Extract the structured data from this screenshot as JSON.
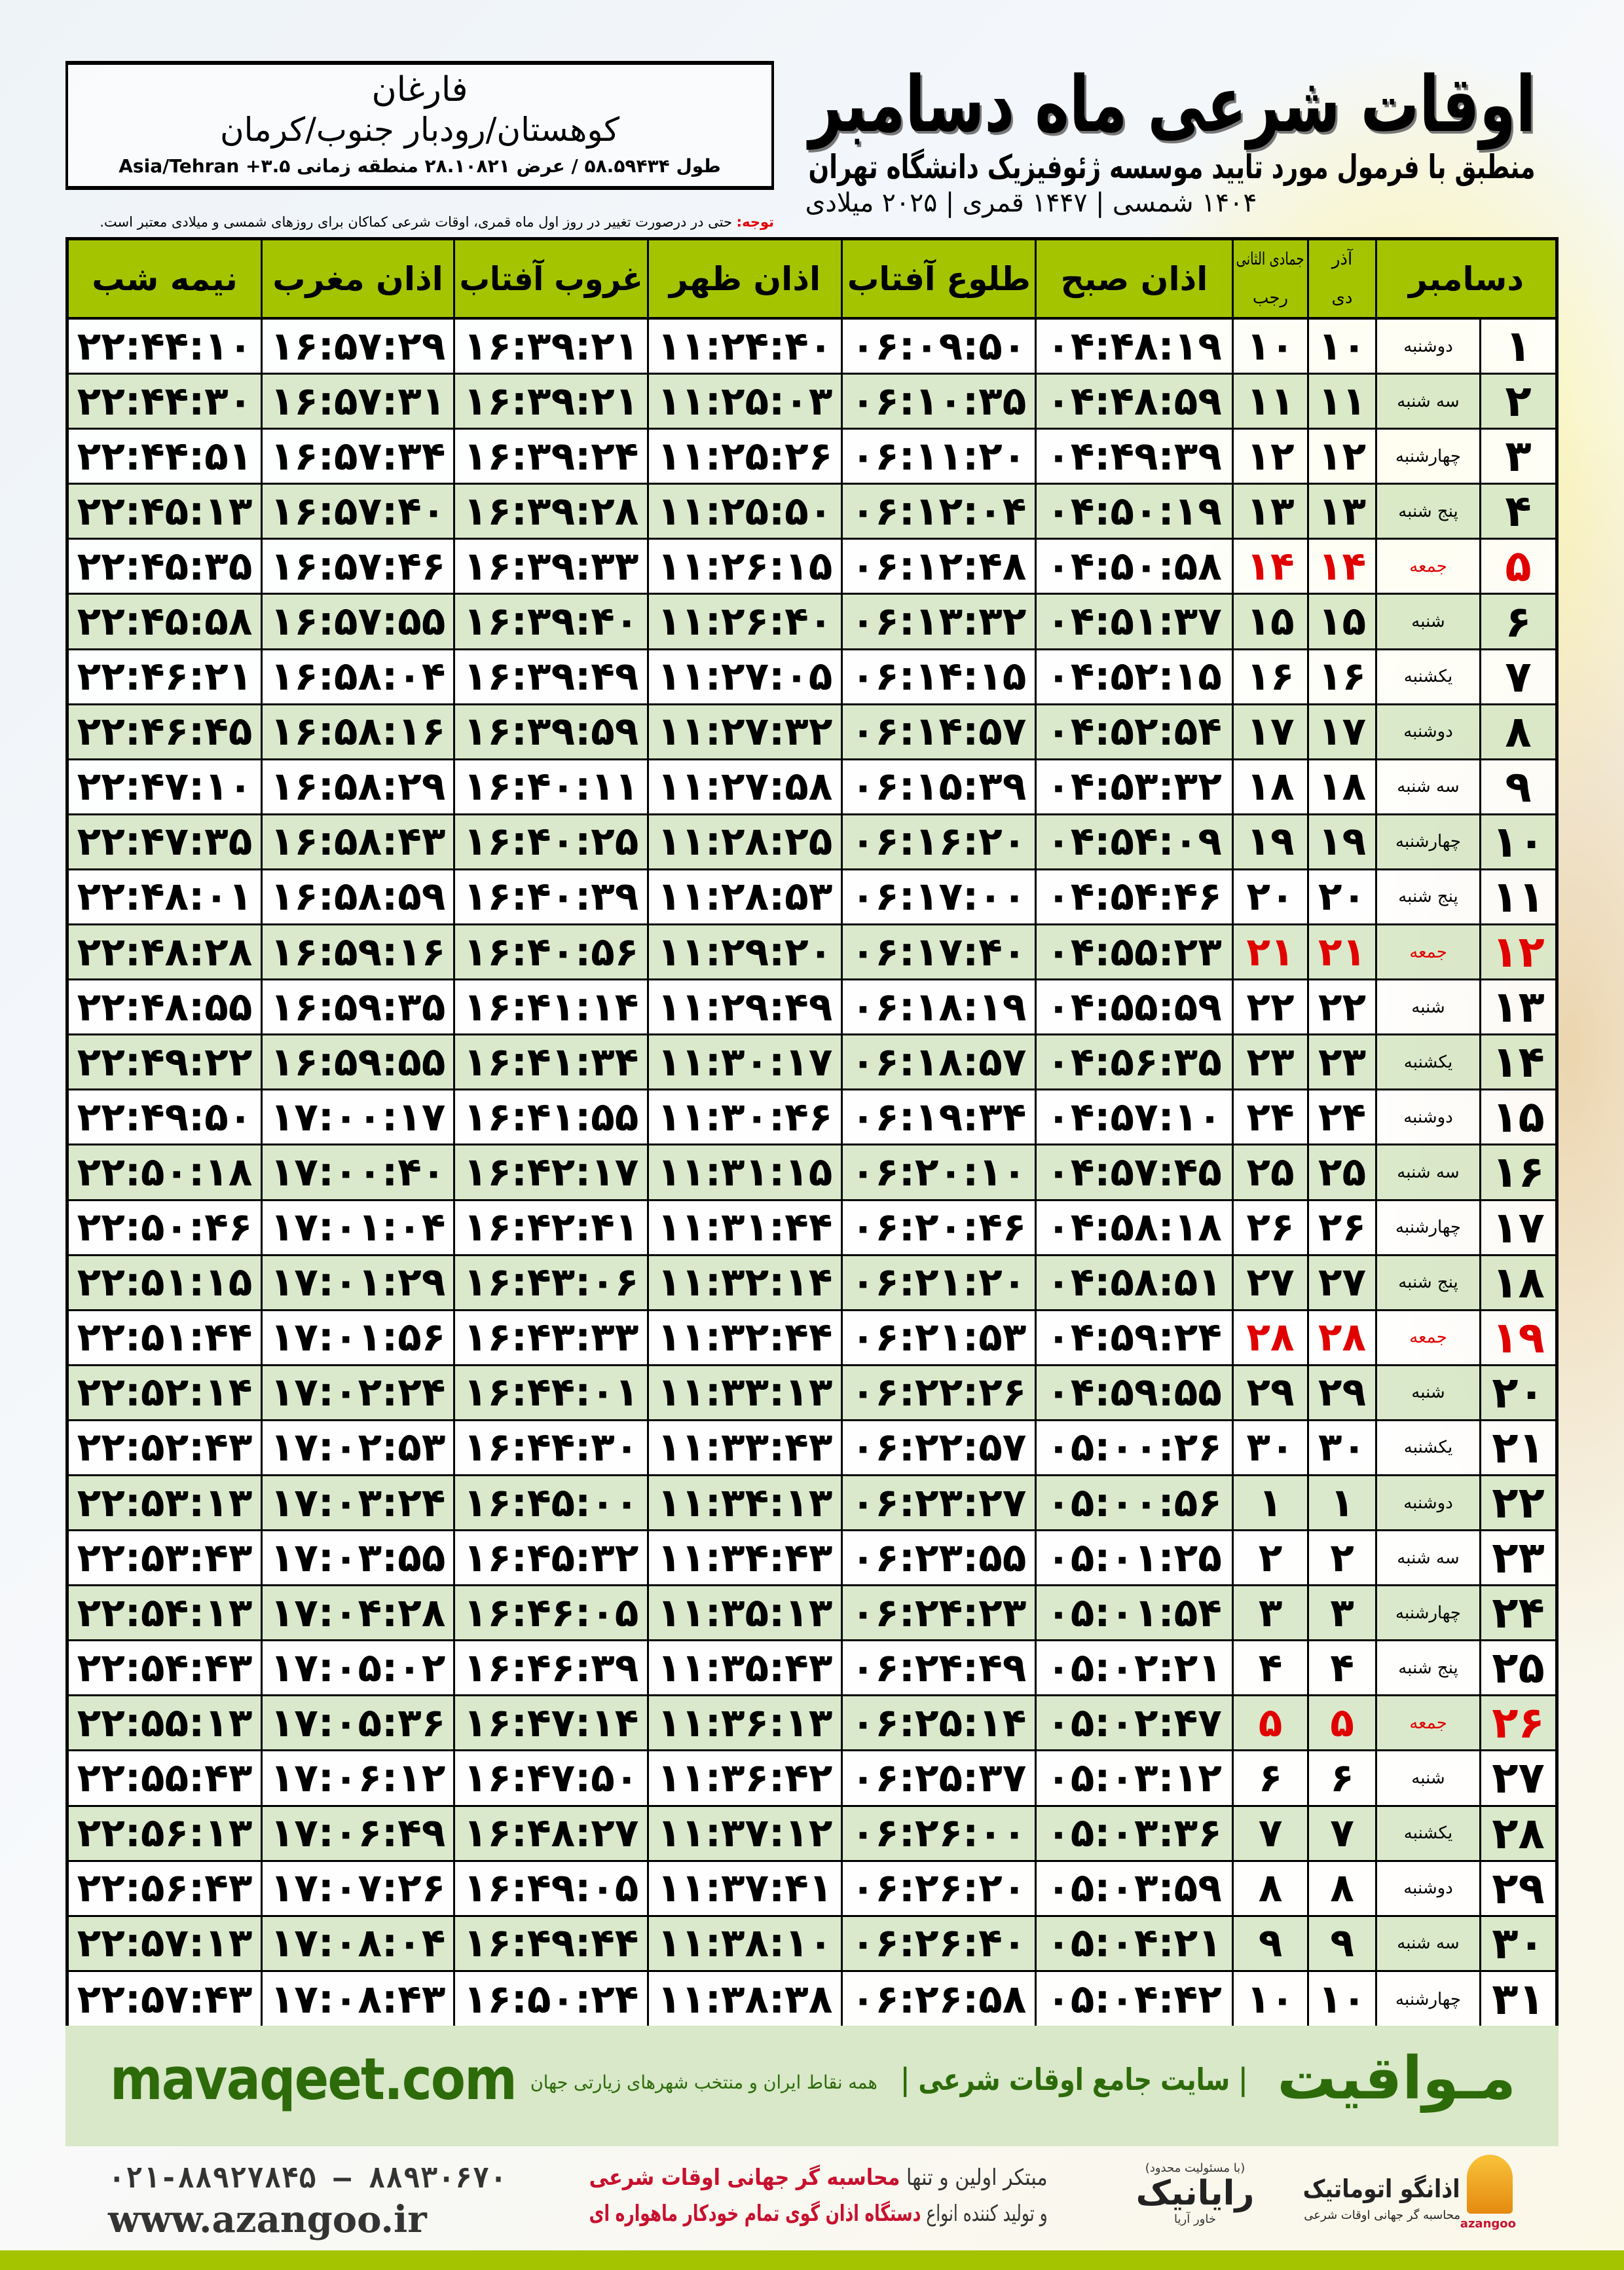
{
  "header": {
    "title": "اوقات شرعی ماه دسامبر",
    "subtitle": "منطبق با فرمول مورد تایید موسسه ژئوفیزیک دانشگاه تهران",
    "dateline": "۱۴۰۴ شمسی | ۱۴۴۷ قمری | ۲۰۲۵ میلادی"
  },
  "location": {
    "city": "فارغان",
    "region": "کوهستان/رودبار جنوب/کرمان",
    "coords": "طول ۵۸.۵۹۴۳۴ / عرض ۲۸.۱۰۸۲۱ منطقه زمانی ۳.۵+ Asia/Tehran"
  },
  "note": {
    "label": "توجه:",
    "text": " حتی در درصورت تغییر در روز اول ماه قمری، اوقات شرعی کماکان برای روزهای شمسی و میلادی معتبر است."
  },
  "table": {
    "headers": {
      "month": "دسامبر",
      "shamsi_top": "آذر",
      "shamsi_bottom": "دی",
      "qamari_top": "جمادی الثانی",
      "qamari_bottom": "رجب",
      "fajr": "اذان صبح",
      "sunrise": "طلوع آفتاب",
      "dhuhr": "اذان ظهر",
      "sunset": "غروب آفتاب",
      "maghrib": "اذان مغرب",
      "midnight": "نیمه شب"
    },
    "rows": [
      {
        "day": "۱",
        "weekday": "دوشنبه",
        "dey": "۱۰",
        "rajab": "۱۰",
        "fajr": "۰۴:۴۸:۱۹",
        "sunrise": "۰۶:۰۹:۵۰",
        "dhuhr": "۱۱:۲۴:۴۰",
        "sunset": "۱۶:۳۹:۲۱",
        "maghrib": "۱۶:۵۷:۲۹",
        "midnight": "۲۲:۴۴:۱۰"
      },
      {
        "day": "۲",
        "weekday": "سه شنبه",
        "dey": "۱۱",
        "rajab": "۱۱",
        "fajr": "۰۴:۴۸:۵۹",
        "sunrise": "۰۶:۱۰:۳۵",
        "dhuhr": "۱۱:۲۵:۰۳",
        "sunset": "۱۶:۳۹:۲۱",
        "maghrib": "۱۶:۵۷:۳۱",
        "midnight": "۲۲:۴۴:۳۰"
      },
      {
        "day": "۳",
        "weekday": "چهارشنبه",
        "dey": "۱۲",
        "rajab": "۱۲",
        "fajr": "۰۴:۴۹:۳۹",
        "sunrise": "۰۶:۱۱:۲۰",
        "dhuhr": "۱۱:۲۵:۲۶",
        "sunset": "۱۶:۳۹:۲۴",
        "maghrib": "۱۶:۵۷:۳۴",
        "midnight": "۲۲:۴۴:۵۱"
      },
      {
        "day": "۴",
        "weekday": "پنج شنبه",
        "dey": "۱۳",
        "rajab": "۱۳",
        "fajr": "۰۴:۵۰:۱۹",
        "sunrise": "۰۶:۱۲:۰۴",
        "dhuhr": "۱۱:۲۵:۵۰",
        "sunset": "۱۶:۳۹:۲۸",
        "maghrib": "۱۶:۵۷:۴۰",
        "midnight": "۲۲:۴۵:۱۳"
      },
      {
        "day": "۵",
        "weekday": "جمعه",
        "dey": "۱۴",
        "rajab": "۱۴",
        "fajr": "۰۴:۵۰:۵۸",
        "sunrise": "۰۶:۱۲:۴۸",
        "dhuhr": "۱۱:۲۶:۱۵",
        "sunset": "۱۶:۳۹:۳۳",
        "maghrib": "۱۶:۵۷:۴۶",
        "midnight": "۲۲:۴۵:۳۵",
        "friday": true
      },
      {
        "day": "۶",
        "weekday": "شنبه",
        "dey": "۱۵",
        "rajab": "۱۵",
        "fajr": "۰۴:۵۱:۳۷",
        "sunrise": "۰۶:۱۳:۳۲",
        "dhuhr": "۱۱:۲۶:۴۰",
        "sunset": "۱۶:۳۹:۴۰",
        "maghrib": "۱۶:۵۷:۵۵",
        "midnight": "۲۲:۴۵:۵۸"
      },
      {
        "day": "۷",
        "weekday": "یکشنبه",
        "dey": "۱۶",
        "rajab": "۱۶",
        "fajr": "۰۴:۵۲:۱۵",
        "sunrise": "۰۶:۱۴:۱۵",
        "dhuhr": "۱۱:۲۷:۰۵",
        "sunset": "۱۶:۳۹:۴۹",
        "maghrib": "۱۶:۵۸:۰۴",
        "midnight": "۲۲:۴۶:۲۱"
      },
      {
        "day": "۸",
        "weekday": "دوشنبه",
        "dey": "۱۷",
        "rajab": "۱۷",
        "fajr": "۰۴:۵۲:۵۴",
        "sunrise": "۰۶:۱۴:۵۷",
        "dhuhr": "۱۱:۲۷:۳۲",
        "sunset": "۱۶:۳۹:۵۹",
        "maghrib": "۱۶:۵۸:۱۶",
        "midnight": "۲۲:۴۶:۴۵"
      },
      {
        "day": "۹",
        "weekday": "سه شنبه",
        "dey": "۱۸",
        "rajab": "۱۸",
        "fajr": "۰۴:۵۳:۳۲",
        "sunrise": "۰۶:۱۵:۳۹",
        "dhuhr": "۱۱:۲۷:۵۸",
        "sunset": "۱۶:۴۰:۱۱",
        "maghrib": "۱۶:۵۸:۲۹",
        "midnight": "۲۲:۴۷:۱۰"
      },
      {
        "day": "۱۰",
        "weekday": "چهارشنبه",
        "dey": "۱۹",
        "rajab": "۱۹",
        "fajr": "۰۴:۵۴:۰۹",
        "sunrise": "۰۶:۱۶:۲۰",
        "dhuhr": "۱۱:۲۸:۲۵",
        "sunset": "۱۶:۴۰:۲۵",
        "maghrib": "۱۶:۵۸:۴۳",
        "midnight": "۲۲:۴۷:۳۵"
      },
      {
        "day": "۱۱",
        "weekday": "پنج شنبه",
        "dey": "۲۰",
        "rajab": "۲۰",
        "fajr": "۰۴:۵۴:۴۶",
        "sunrise": "۰۶:۱۷:۰۰",
        "dhuhr": "۱۱:۲۸:۵۳",
        "sunset": "۱۶:۴۰:۳۹",
        "maghrib": "۱۶:۵۸:۵۹",
        "midnight": "۲۲:۴۸:۰۱"
      },
      {
        "day": "۱۲",
        "weekday": "جمعه",
        "dey": "۲۱",
        "rajab": "۲۱",
        "fajr": "۰۴:۵۵:۲۳",
        "sunrise": "۰۶:۱۷:۴۰",
        "dhuhr": "۱۱:۲۹:۲۰",
        "sunset": "۱۶:۴۰:۵۶",
        "maghrib": "۱۶:۵۹:۱۶",
        "midnight": "۲۲:۴۸:۲۸",
        "friday": true
      },
      {
        "day": "۱۳",
        "weekday": "شنبه",
        "dey": "۲۲",
        "rajab": "۲۲",
        "fajr": "۰۴:۵۵:۵۹",
        "sunrise": "۰۶:۱۸:۱۹",
        "dhuhr": "۱۱:۲۹:۴۹",
        "sunset": "۱۶:۴۱:۱۴",
        "maghrib": "۱۶:۵۹:۳۵",
        "midnight": "۲۲:۴۸:۵۵"
      },
      {
        "day": "۱۴",
        "weekday": "یکشنبه",
        "dey": "۲۳",
        "rajab": "۲۳",
        "fajr": "۰۴:۵۶:۳۵",
        "sunrise": "۰۶:۱۸:۵۷",
        "dhuhr": "۱۱:۳۰:۱۷",
        "sunset": "۱۶:۴۱:۳۴",
        "maghrib": "۱۶:۵۹:۵۵",
        "midnight": "۲۲:۴۹:۲۲"
      },
      {
        "day": "۱۵",
        "weekday": "دوشنبه",
        "dey": "۲۴",
        "rajab": "۲۴",
        "fajr": "۰۴:۵۷:۱۰",
        "sunrise": "۰۶:۱۹:۳۴",
        "dhuhr": "۱۱:۳۰:۴۶",
        "sunset": "۱۶:۴۱:۵۵",
        "maghrib": "۱۷:۰۰:۱۷",
        "midnight": "۲۲:۴۹:۵۰"
      },
      {
        "day": "۱۶",
        "weekday": "سه شنبه",
        "dey": "۲۵",
        "rajab": "۲۵",
        "fajr": "۰۴:۵۷:۴۵",
        "sunrise": "۰۶:۲۰:۱۰",
        "dhuhr": "۱۱:۳۱:۱۵",
        "sunset": "۱۶:۴۲:۱۷",
        "maghrib": "۱۷:۰۰:۴۰",
        "midnight": "۲۲:۵۰:۱۸"
      },
      {
        "day": "۱۷",
        "weekday": "چهارشنبه",
        "dey": "۲۶",
        "rajab": "۲۶",
        "fajr": "۰۴:۵۸:۱۸",
        "sunrise": "۰۶:۲۰:۴۶",
        "dhuhr": "۱۱:۳۱:۴۴",
        "sunset": "۱۶:۴۲:۴۱",
        "maghrib": "۱۷:۰۱:۰۴",
        "midnight": "۲۲:۵۰:۴۶"
      },
      {
        "day": "۱۸",
        "weekday": "پنج شنبه",
        "dey": "۲۷",
        "rajab": "۲۷",
        "fajr": "۰۴:۵۸:۵۱",
        "sunrise": "۰۶:۲۱:۲۰",
        "dhuhr": "۱۱:۳۲:۱۴",
        "sunset": "۱۶:۴۳:۰۶",
        "maghrib": "۱۷:۰۱:۲۹",
        "midnight": "۲۲:۵۱:۱۵"
      },
      {
        "day": "۱۹",
        "weekday": "جمعه",
        "dey": "۲۸",
        "rajab": "۲۸",
        "fajr": "۰۴:۵۹:۲۴",
        "sunrise": "۰۶:۲۱:۵۳",
        "dhuhr": "۱۱:۳۲:۴۴",
        "sunset": "۱۶:۴۳:۳۳",
        "maghrib": "۱۷:۰۱:۵۶",
        "midnight": "۲۲:۵۱:۴۴",
        "friday": true
      },
      {
        "day": "۲۰",
        "weekday": "شنبه",
        "dey": "۲۹",
        "rajab": "۲۹",
        "fajr": "۰۴:۵۹:۵۵",
        "sunrise": "۰۶:۲۲:۲۶",
        "dhuhr": "۱۱:۳۳:۱۳",
        "sunset": "۱۶:۴۴:۰۱",
        "maghrib": "۱۷:۰۲:۲۴",
        "midnight": "۲۲:۵۲:۱۴"
      },
      {
        "day": "۲۱",
        "weekday": "یکشنبه",
        "dey": "۳۰",
        "rajab": "۳۰",
        "fajr": "۰۵:۰۰:۲۶",
        "sunrise": "۰۶:۲۲:۵۷",
        "dhuhr": "۱۱:۳۳:۴۳",
        "sunset": "۱۶:۴۴:۳۰",
        "maghrib": "۱۷:۰۲:۵۳",
        "midnight": "۲۲:۵۲:۴۳"
      },
      {
        "day": "۲۲",
        "weekday": "دوشنبه",
        "dey": "۱",
        "rajab": "۱",
        "fajr": "۰۵:۰۰:۵۶",
        "sunrise": "۰۶:۲۳:۲۷",
        "dhuhr": "۱۱:۳۴:۱۳",
        "sunset": "۱۶:۴۵:۰۰",
        "maghrib": "۱۷:۰۳:۲۴",
        "midnight": "۲۲:۵۳:۱۳"
      },
      {
        "day": "۲۳",
        "weekday": "سه شنبه",
        "dey": "۲",
        "rajab": "۲",
        "fajr": "۰۵:۰۱:۲۵",
        "sunrise": "۰۶:۲۳:۵۵",
        "dhuhr": "۱۱:۳۴:۴۳",
        "sunset": "۱۶:۴۵:۳۲",
        "maghrib": "۱۷:۰۳:۵۵",
        "midnight": "۲۲:۵۳:۴۳"
      },
      {
        "day": "۲۴",
        "weekday": "چهارشنبه",
        "dey": "۳",
        "rajab": "۳",
        "fajr": "۰۵:۰۱:۵۴",
        "sunrise": "۰۶:۲۴:۲۳",
        "dhuhr": "۱۱:۳۵:۱۳",
        "sunset": "۱۶:۴۶:۰۵",
        "maghrib": "۱۷:۰۴:۲۸",
        "midnight": "۲۲:۵۴:۱۳"
      },
      {
        "day": "۲۵",
        "weekday": "پنج شنبه",
        "dey": "۴",
        "rajab": "۴",
        "fajr": "۰۵:۰۲:۲۱",
        "sunrise": "۰۶:۲۴:۴۹",
        "dhuhr": "۱۱:۳۵:۴۳",
        "sunset": "۱۶:۴۶:۳۹",
        "maghrib": "۱۷:۰۵:۰۲",
        "midnight": "۲۲:۵۴:۴۳"
      },
      {
        "day": "۲۶",
        "weekday": "جمعه",
        "dey": "۵",
        "rajab": "۵",
        "fajr": "۰۵:۰۲:۴۷",
        "sunrise": "۰۶:۲۵:۱۴",
        "dhuhr": "۱۱:۳۶:۱۳",
        "sunset": "۱۶:۴۷:۱۴",
        "maghrib": "۱۷:۰۵:۳۶",
        "midnight": "۲۲:۵۵:۱۳",
        "friday": true
      },
      {
        "day": "۲۷",
        "weekday": "شنبه",
        "dey": "۶",
        "rajab": "۶",
        "fajr": "۰۵:۰۳:۱۲",
        "sunrise": "۰۶:۲۵:۳۷",
        "dhuhr": "۱۱:۳۶:۴۲",
        "sunset": "۱۶:۴۷:۵۰",
        "maghrib": "۱۷:۰۶:۱۲",
        "midnight": "۲۲:۵۵:۴۳"
      },
      {
        "day": "۲۸",
        "weekday": "یکشنبه",
        "dey": "۷",
        "rajab": "۷",
        "fajr": "۰۵:۰۳:۳۶",
        "sunrise": "۰۶:۲۶:۰۰",
        "dhuhr": "۱۱:۳۷:۱۲",
        "sunset": "۱۶:۴۸:۲۷",
        "maghrib": "۱۷:۰۶:۴۹",
        "midnight": "۲۲:۵۶:۱۳"
      },
      {
        "day": "۲۹",
        "weekday": "دوشنبه",
        "dey": "۸",
        "rajab": "۸",
        "fajr": "۰۵:۰۳:۵۹",
        "sunrise": "۰۶:۲۶:۲۰",
        "dhuhr": "۱۱:۳۷:۴۱",
        "sunset": "۱۶:۴۹:۰۵",
        "maghrib": "۱۷:۰۷:۲۶",
        "midnight": "۲۲:۵۶:۴۳"
      },
      {
        "day": "۳۰",
        "weekday": "سه شنبه",
        "dey": "۹",
        "rajab": "۹",
        "fajr": "۰۵:۰۴:۲۱",
        "sunrise": "۰۶:۲۶:۴۰",
        "dhuhr": "۱۱:۳۸:۱۰",
        "sunset": "۱۶:۴۹:۴۴",
        "maghrib": "۱۷:۰۸:۰۴",
        "midnight": "۲۲:۵۷:۱۳"
      },
      {
        "day": "۳۱",
        "weekday": "چهارشنبه",
        "dey": "۱۰",
        "rajab": "۱۰",
        "fajr": "۰۵:۰۴:۴۲",
        "sunrise": "۰۶:۲۶:۵۸",
        "dhuhr": "۱۱:۳۸:۳۸",
        "sunset": "۱۶:۵۰:۲۴",
        "maghrib": "۱۷:۰۸:۴۳",
        "midnight": "۲۲:۵۷:۴۳"
      }
    ]
  },
  "footer": {
    "brand": "مـواقیت",
    "tagline": "| سایت جامع اوقات شرعی |",
    "sub": "همه نقاط ایران و منتخب شهرهای زیارتی جهان",
    "url": "mavaqeet.com",
    "phone": "۰۲۱-۸۸۹۲۷۸۴۵ – ۸۸۹۳۰۶۷۰",
    "website": "www.azangoo.ir",
    "promo1a": "مبتکر اولین و تنها ",
    "promo1b": "محاسبه گر جهانی اوقات شرعی",
    "promo2a": "و تولید کننده انواع ",
    "promo2b": "دستگاه اذان گوی تمام خودکار ماهواره ای",
    "ray_small": "(با مسئولیت محدود)",
    "ray_big": "رایانیک",
    "ray_side": "خاور آریا",
    "az_name": "اذانگو اتوماتیک",
    "az_sub": "محاسبه گر جهانی اوقات شرعی",
    "az_latin": "azangoo"
  },
  "colors": {
    "header_green": "#a5c400",
    "row_green": "#d8e8c8",
    "friday_red": "#e00000",
    "brand_green": "#2d6a0a"
  }
}
